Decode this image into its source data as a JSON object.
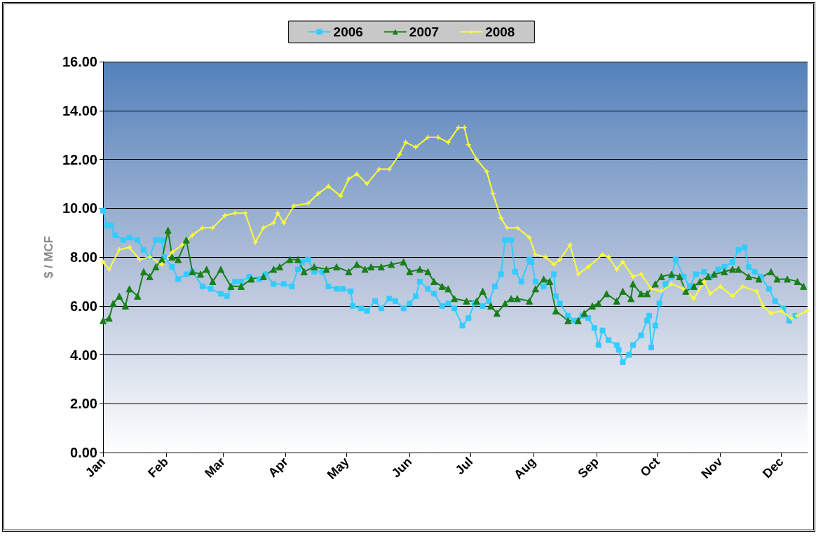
{
  "chart_data": {
    "type": "line",
    "ylabel": "$ / MCF",
    "xlim": [
      "--01-01",
      "--12-14"
    ],
    "ylim": [
      0,
      16
    ],
    "xticks": [
      {
        "value": "--01-01",
        "label": "Jan"
      },
      {
        "value": "--02-01",
        "label": "Feb"
      },
      {
        "value": "--03-01",
        "label": "Mar"
      },
      {
        "value": "--04-01",
        "label": "Apr"
      },
      {
        "value": "--05-01",
        "label": "May"
      },
      {
        "value": "--06-01",
        "label": "Jun"
      },
      {
        "value": "--07-01",
        "label": "Jul"
      },
      {
        "value": "--08-01",
        "label": "Aug"
      },
      {
        "value": "--09-01",
        "label": "Sep"
      },
      {
        "value": "--10-01",
        "label": "Oct"
      },
      {
        "value": "--11-01",
        "label": "Nov"
      },
      {
        "value": "--12-01",
        "label": "Dec"
      }
    ],
    "yticks": [
      {
        "value": 0,
        "label": "0.00"
      },
      {
        "value": 2,
        "label": "2.00"
      },
      {
        "value": 4,
        "label": "4.00"
      },
      {
        "value": 6,
        "label": "6.00"
      },
      {
        "value": 8,
        "label": "8.00"
      },
      {
        "value": 10,
        "label": "10.00"
      },
      {
        "value": 12,
        "label": "12.00"
      },
      {
        "value": 14,
        "label": "14.00"
      },
      {
        "value": 16,
        "label": "16.00"
      }
    ],
    "grid": "y",
    "legend": "top",
    "line_style": "solid",
    "series": [
      {
        "name": "2006",
        "color": "#33ccff",
        "marker": "square",
        "x": [
          "--01-01",
          "--01-03",
          "--01-05",
          "--01-07",
          "--01-11",
          "--01-14",
          "--01-18",
          "--01-21",
          "--01-24",
          "--01-27",
          "--01-30",
          "--01-31",
          "--02-04",
          "--02-07",
          "--02-11",
          "--02-14",
          "--02-19",
          "--02-23",
          "--02-28",
          "--03-03",
          "--03-07",
          "--03-10",
          "--03-14",
          "--03-19",
          "--03-22",
          "--03-26",
          "--03-31",
          "--04-04",
          "--04-07",
          "--04-09",
          "--04-12",
          "--04-15",
          "--04-19",
          "--04-22",
          "--04-26",
          "--04-29",
          "--05-03",
          "--05-04",
          "--05-08",
          "--05-11",
          "--05-15",
          "--05-18",
          "--05-22",
          "--05-25",
          "--05-29",
          "--06-01",
          "--06-04",
          "--06-06",
          "--06-10",
          "--06-13",
          "--06-17",
          "--06-20",
          "--06-23",
          "--06-27",
          "--06-30",
          "--07-03",
          "--07-07",
          "--07-10",
          "--07-13",
          "--07-16",
          "--07-18",
          "--07-21",
          "--07-23",
          "--07-26",
          "--07-30",
          "--07-31",
          "--08-02",
          "--08-06",
          "--08-11",
          "--08-12",
          "--08-14",
          "--08-18",
          "--08-21",
          "--08-25",
          "--08-28",
          "--08-31",
          "--09-02",
          "--09-04",
          "--09-07",
          "--09-11",
          "--09-12",
          "--09-14",
          "--09-17",
          "--09-19",
          "--09-23",
          "--09-26",
          "--09-27",
          "--09-28",
          "--09-30",
          "--10-02",
          "--10-05",
          "--10-08",
          "--10-10",
          "--10-14",
          "--10-17",
          "--10-20",
          "--10-24",
          "--10-27",
          "--10-31",
          "--11-03",
          "--11-07",
          "--11-10",
          "--11-13",
          "--11-15",
          "--11-18",
          "--11-21",
          "--11-25",
          "--11-28",
          "--12-02",
          "--12-05",
          "--12-08"
        ],
        "values": [
          9.9,
          9.3,
          9.3,
          8.9,
          8.7,
          8.8,
          8.7,
          8.3,
          8.0,
          8.7,
          8.7,
          8.0,
          7.6,
          7.1,
          7.3,
          7.4,
          6.8,
          6.7,
          6.5,
          6.4,
          7.0,
          7.0,
          7.2,
          7.1,
          7.3,
          6.9,
          6.9,
          6.8,
          7.5,
          7.8,
          7.9,
          7.4,
          7.4,
          6.8,
          6.7,
          6.7,
          6.6,
          6.0,
          5.9,
          5.8,
          6.2,
          5.9,
          6.3,
          6.2,
          5.9,
          6.1,
          6.4,
          7.0,
          6.7,
          6.5,
          6.0,
          6.1,
          5.9,
          5.2,
          5.5,
          6.1,
          6.0,
          6.2,
          6.8,
          7.3,
          8.7,
          8.7,
          7.4,
          7.0,
          7.9,
          7.8,
          7.0,
          6.8,
          7.3,
          6.4,
          6.1,
          5.6,
          5.4,
          5.6,
          5.5,
          5.1,
          4.4,
          5.0,
          4.6,
          4.4,
          4.2,
          3.7,
          4.0,
          4.4,
          4.8,
          5.4,
          5.6,
          4.3,
          5.2,
          6.1,
          6.9,
          7.2,
          7.9,
          7.2,
          6.8,
          7.3,
          7.4,
          7.2,
          7.5,
          7.6,
          7.8,
          8.3,
          8.4,
          7.6,
          7.4,
          7.2,
          6.7,
          6.2,
          5.9,
          5.4,
          5.6
        ]
      },
      {
        "name": "2007",
        "color": "#1a7f1a",
        "marker": "triangle",
        "x": [
          "--01-01",
          "--01-04",
          "--01-06",
          "--01-09",
          "--01-12",
          "--01-14",
          "--01-18",
          "--01-21",
          "--01-24",
          "--01-27",
          "--01-30",
          "--02-02",
          "--02-04",
          "--02-07",
          "--02-11",
          "--02-14",
          "--02-18",
          "--02-21",
          "--02-24",
          "--02-28",
          "--03-05",
          "--03-10",
          "--03-15",
          "--03-21",
          "--03-26",
          "--03-29",
          "--04-03",
          "--04-07",
          "--04-10",
          "--04-15",
          "--04-21",
          "--04-26",
          "--05-02",
          "--05-06",
          "--05-10",
          "--05-13",
          "--05-18",
          "--05-23",
          "--05-29",
          "--06-01",
          "--06-06",
          "--06-10",
          "--06-13",
          "--06-17",
          "--06-20",
          "--06-23",
          "--06-29",
          "--07-04",
          "--07-07",
          "--07-11",
          "--07-14",
          "--07-18",
          "--07-21",
          "--07-24",
          "--07-30",
          "--08-02",
          "--08-06",
          "--08-09",
          "--08-12",
          "--08-18",
          "--08-23",
          "--08-26",
          "--08-30",
          "--09-02",
          "--09-06",
          "--09-11",
          "--09-14",
          "--09-18",
          "--09-19",
          "--09-23",
          "--09-26",
          "--09-30",
          "--10-03",
          "--10-08",
          "--10-12",
          "--10-15",
          "--10-19",
          "--10-22",
          "--10-26",
          "--10-29",
          "--11-03",
          "--11-07",
          "--11-10",
          "--11-15",
          "--11-20",
          "--11-26",
          "--11-29",
          "--12-04",
          "--12-09",
          "--12-12"
        ],
        "values": [
          5.4,
          5.5,
          6.1,
          6.4,
          6.0,
          6.7,
          6.4,
          7.4,
          7.2,
          7.6,
          7.9,
          9.1,
          8.0,
          7.9,
          8.7,
          7.4,
          7.3,
          7.5,
          7.0,
          7.5,
          6.8,
          6.8,
          7.1,
          7.2,
          7.5,
          7.6,
          7.9,
          7.9,
          7.4,
          7.6,
          7.5,
          7.6,
          7.4,
          7.7,
          7.5,
          7.6,
          7.6,
          7.7,
          7.8,
          7.4,
          7.5,
          7.4,
          7.0,
          6.8,
          6.7,
          6.3,
          6.2,
          6.2,
          6.6,
          6.0,
          5.7,
          6.1,
          6.3,
          6.3,
          6.2,
          6.7,
          7.1,
          7.0,
          5.8,
          5.4,
          5.4,
          5.7,
          6.0,
          6.1,
          6.5,
          6.2,
          6.6,
          6.3,
          6.9,
          6.5,
          6.5,
          6.9,
          7.2,
          7.3,
          7.2,
          6.6,
          6.8,
          7.0,
          7.2,
          7.3,
          7.4,
          7.5,
          7.5,
          7.2,
          7.1,
          7.4,
          7.1,
          7.1,
          7.0,
          6.8
        ]
      },
      {
        "name": "2008",
        "color": "#ffff33",
        "marker": "star",
        "x": [
          "--01-01",
          "--01-04",
          "--01-09",
          "--01-14",
          "--01-19",
          "--01-24",
          "--01-30",
          "--02-04",
          "--02-09",
          "--02-14",
          "--02-19",
          "--02-24",
          "--03-02",
          "--03-07",
          "--03-12",
          "--03-17",
          "--03-21",
          "--03-26",
          "--03-28",
          "--03-31",
          "--04-05",
          "--04-12",
          "--04-17",
          "--04-22",
          "--04-28",
          "--05-02",
          "--05-06",
          "--05-11",
          "--05-17",
          "--05-22",
          "--05-27",
          "--05-30",
          "--06-04",
          "--06-10",
          "--06-15",
          "--06-20",
          "--06-25",
          "--06-28",
          "--06-30",
          "--07-04",
          "--07-09",
          "--07-12",
          "--07-16",
          "--07-19",
          "--07-24",
          "--07-30",
          "--08-02",
          "--08-07",
          "--08-11",
          "--08-14",
          "--08-19",
          "--08-23",
          "--08-28",
          "--09-04",
          "--09-07",
          "--09-11",
          "--09-14",
          "--09-19",
          "--09-23",
          "--09-28",
          "--10-03",
          "--10-08",
          "--10-14",
          "--10-19",
          "--10-24",
          "--10-27",
          "--11-01",
          "--11-07",
          "--11-12",
          "--11-19",
          "--11-22",
          "--11-26",
          "--12-01",
          "--12-06",
          "--12-09",
          "--12-14"
        ],
        "values": [
          7.8,
          7.5,
          8.3,
          8.4,
          7.9,
          8.0,
          7.7,
          8.2,
          8.5,
          8.9,
          9.2,
          9.2,
          9.7,
          9.8,
          9.8,
          8.6,
          9.2,
          9.4,
          9.8,
          9.4,
          10.1,
          10.2,
          10.6,
          10.9,
          10.5,
          11.2,
          11.4,
          11.0,
          11.6,
          11.6,
          12.2,
          12.7,
          12.5,
          12.9,
          12.9,
          12.7,
          13.3,
          13.3,
          12.6,
          12.0,
          11.5,
          10.6,
          9.6,
          9.2,
          9.2,
          8.8,
          8.1,
          8.0,
          7.7,
          7.9,
          8.5,
          7.3,
          7.6,
          8.1,
          8.0,
          7.5,
          7.8,
          7.2,
          7.3,
          6.7,
          6.6,
          6.9,
          6.7,
          6.3,
          7.0,
          6.5,
          6.8,
          6.4,
          6.8,
          6.6,
          6.0,
          5.7,
          5.8,
          5.5,
          5.6,
          5.8
        ]
      }
    ]
  }
}
